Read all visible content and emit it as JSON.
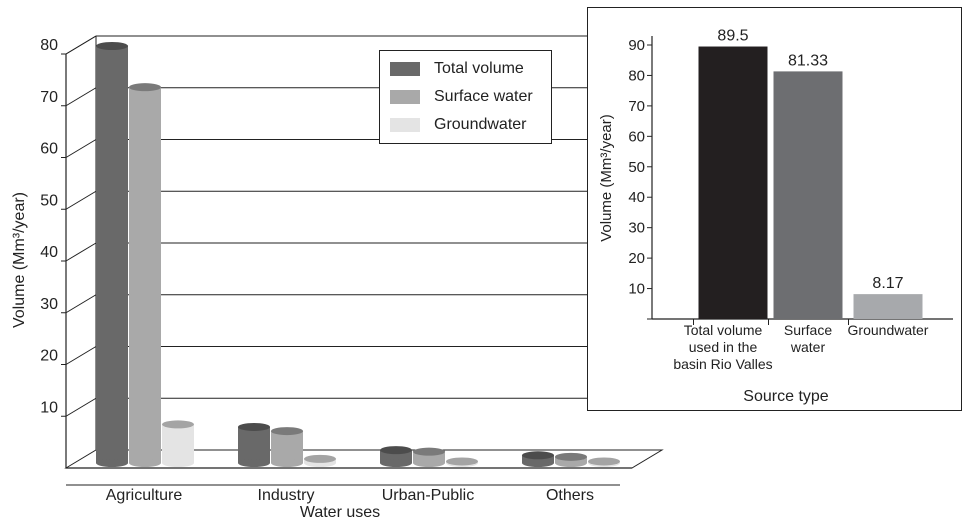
{
  "chart_data": [
    {
      "type": "bar",
      "xlabel": "Water uses",
      "ylabel": "Volume (Mm³/year)",
      "ylim": [
        0,
        80
      ],
      "yticks": [
        10,
        20,
        30,
        40,
        50,
        60,
        70,
        80
      ],
      "grid": true,
      "legend_placement": "top-right",
      "categories": [
        "Agriculture",
        "Industry",
        "Urban-Public",
        "Others"
      ],
      "series": [
        {
          "name": "Total volume",
          "color": "#696969",
          "values": [
            81,
            7,
            2.5,
            1.5
          ]
        },
        {
          "name": "Surface water",
          "color": "#a9a9a9",
          "values": [
            73,
            6.2,
            2.2,
            1.2
          ]
        },
        {
          "name": "Groundwater",
          "color": "#e4e4e4",
          "values": [
            7.5,
            0.8,
            0.3,
            0.3
          ]
        }
      ]
    },
    {
      "type": "bar",
      "xlabel": "Source type",
      "ylabel": "Volume (Mm³/year)",
      "ylim": [
        0,
        90
      ],
      "yticks": [
        10,
        20,
        30,
        40,
        50,
        60,
        70,
        80,
        90
      ],
      "categories": [
        [
          "Total volume",
          "used in the",
          "basin Rio Valles"
        ],
        [
          "Surface",
          "water"
        ],
        [
          "Groundwater"
        ]
      ],
      "values": [
        89.5,
        81.33,
        8.17
      ],
      "data_labels": [
        "89.5",
        "81.33",
        "8.17"
      ],
      "colors": [
        "#231f20",
        "#6d6e71",
        "#a7a9ac"
      ]
    }
  ]
}
